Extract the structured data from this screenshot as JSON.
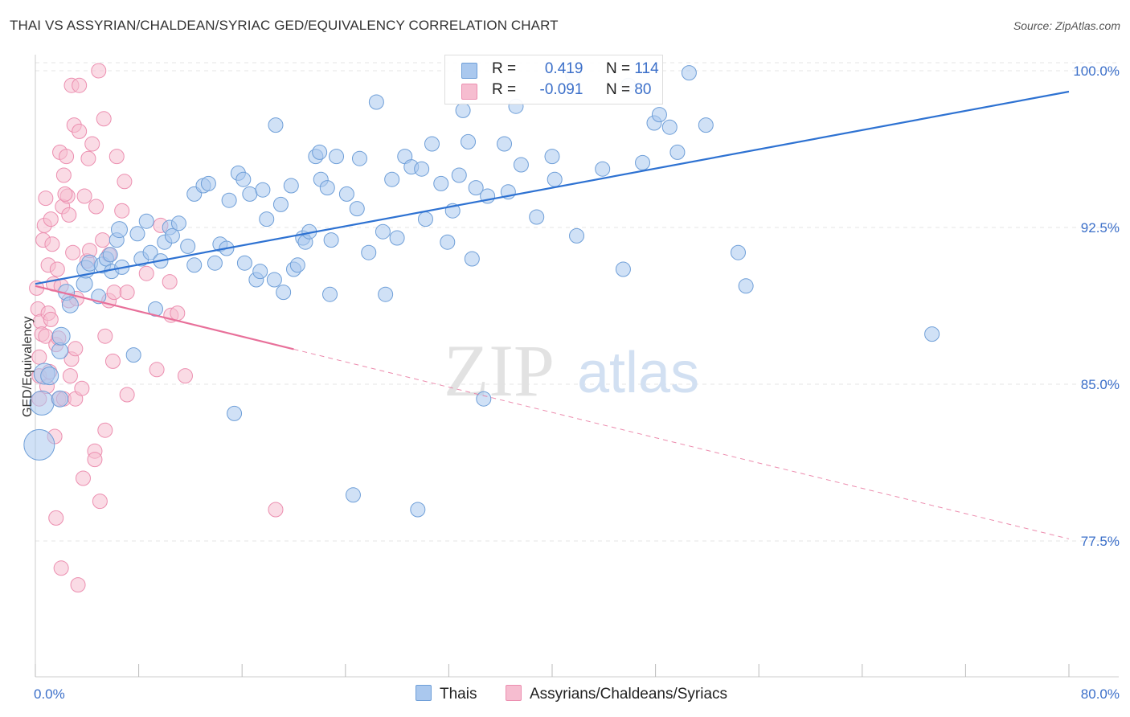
{
  "header": {
    "title": "THAI VS ASSYRIAN/CHALDEAN/SYRIAC GED/EQUIVALENCY CORRELATION CHART",
    "source": "Source: ZipAtlas.com"
  },
  "legend": {
    "thais": {
      "r_label": "R =",
      "r_value": "0.419",
      "n_label": "N =",
      "n_value": "114"
    },
    "assyrians": {
      "r_label": "R =",
      "r_value": "-0.091",
      "n_label": "N =",
      "n_value": "80"
    }
  },
  "bottom_legend": {
    "thais": "Thais",
    "assyrians": "Assyrians/Chaldeans/Syriacs"
  },
  "watermark": {
    "zip": "ZIP",
    "atlas": "atlas"
  },
  "colors": {
    "thais_fill": "#aac8ee",
    "thais_stroke": "#6f9fd8",
    "thais_line": "#2e72d2",
    "assy_fill": "#f6bdd0",
    "assy_stroke": "#ec8fb0",
    "assy_line": "#e8709a",
    "tick_text": "#3b6fc9",
    "grid": "#e4e4e4"
  },
  "chart_data": {
    "type": "scatter",
    "title": "THAI VS ASSYRIAN/CHALDEAN/SYRIAC GED/EQUIVALENCY CORRELATION CHART",
    "xlabel": "",
    "ylabel": "GED/Equivalency",
    "xlim": [
      0,
      80
    ],
    "ylim": [
      71,
      101
    ],
    "x_tick_labels": [
      "0.0%",
      "80.0%"
    ],
    "y_ticks": [
      77.5,
      85.0,
      92.5,
      100.0
    ],
    "y_tick_labels": [
      "77.5%",
      "85.0%",
      "92.5%",
      "100.0%"
    ],
    "grid": true,
    "legend_position": "top-center",
    "series": [
      {
        "name": "Thais",
        "trend": {
          "x0": 0,
          "y0": 89.8,
          "x1": 80,
          "y1": 99.0,
          "dashed_from": null
        },
        "points": [
          [
            0.3,
            82.1,
            18
          ],
          [
            0.5,
            84.1,
            14
          ],
          [
            0.7,
            85.5,
            12
          ],
          [
            1.1,
            85.4,
            10
          ],
          [
            1.9,
            84.3,
            9
          ],
          [
            1.9,
            86.6,
            9
          ],
          [
            2.0,
            87.3,
            10
          ],
          [
            2.4,
            89.4,
            9
          ],
          [
            2.7,
            88.8,
            9
          ],
          [
            3.8,
            89.8,
            9
          ],
          [
            3.9,
            90.5,
            10
          ],
          [
            4.2,
            90.8,
            9
          ],
          [
            4.9,
            89.2,
            8
          ],
          [
            5.2,
            90.7,
            9
          ],
          [
            5.5,
            91.0,
            8
          ],
          [
            5.8,
            91.2,
            8
          ],
          [
            5.9,
            90.4,
            8
          ],
          [
            6.3,
            91.9,
            8
          ],
          [
            6.5,
            92.4,
            9
          ],
          [
            6.7,
            90.6,
            8
          ],
          [
            7.6,
            86.4,
            8
          ],
          [
            7.9,
            92.2,
            8
          ],
          [
            8.2,
            91.0,
            8
          ],
          [
            8.6,
            92.8,
            8
          ],
          [
            8.9,
            91.3,
            8
          ],
          [
            9.3,
            88.6,
            8
          ],
          [
            9.7,
            90.9,
            8
          ],
          [
            10.0,
            91.8,
            8
          ],
          [
            10.4,
            92.5,
            8
          ],
          [
            10.6,
            92.1,
            8
          ],
          [
            11.1,
            92.7,
            8
          ],
          [
            11.8,
            91.6,
            8
          ],
          [
            12.3,
            94.1,
            8
          ],
          [
            12.3,
            90.7,
            8
          ],
          [
            13.0,
            94.5,
            8
          ],
          [
            13.4,
            94.6,
            8
          ],
          [
            13.9,
            90.8,
            8
          ],
          [
            14.3,
            91.7,
            8
          ],
          [
            14.8,
            91.5,
            8
          ],
          [
            15.0,
            93.8,
            8
          ],
          [
            15.4,
            83.6,
            8
          ],
          [
            15.7,
            95.1,
            8
          ],
          [
            16.1,
            94.8,
            8
          ],
          [
            16.2,
            90.8,
            8
          ],
          [
            16.6,
            94.1,
            8
          ],
          [
            17.1,
            90.0,
            8
          ],
          [
            17.4,
            90.4,
            8
          ],
          [
            17.6,
            94.3,
            8
          ],
          [
            17.9,
            92.9,
            8
          ],
          [
            18.5,
            90.0,
            8
          ],
          [
            18.6,
            97.4,
            8
          ],
          [
            19.0,
            93.6,
            8
          ],
          [
            19.2,
            89.4,
            8
          ],
          [
            19.8,
            94.5,
            8
          ],
          [
            20.0,
            90.5,
            8
          ],
          [
            20.3,
            90.7,
            8
          ],
          [
            20.7,
            92.0,
            8
          ],
          [
            20.9,
            91.8,
            8
          ],
          [
            21.2,
            92.3,
            8
          ],
          [
            21.7,
            95.9,
            8
          ],
          [
            22.0,
            96.1,
            8
          ],
          [
            22.1,
            94.8,
            8
          ],
          [
            22.6,
            94.4,
            8
          ],
          [
            22.8,
            89.3,
            8
          ],
          [
            22.9,
            91.9,
            8
          ],
          [
            23.3,
            95.9,
            8
          ],
          [
            24.1,
            94.1,
            8
          ],
          [
            24.6,
            79.7,
            8
          ],
          [
            24.9,
            93.4,
            8
          ],
          [
            25.1,
            95.8,
            8
          ],
          [
            25.8,
            91.3,
            8
          ],
          [
            26.4,
            98.5,
            8
          ],
          [
            26.9,
            92.3,
            8
          ],
          [
            27.1,
            89.3,
            8
          ],
          [
            27.6,
            94.8,
            8
          ],
          [
            28.0,
            92.0,
            8
          ],
          [
            28.6,
            95.9,
            8
          ],
          [
            29.1,
            95.4,
            8
          ],
          [
            29.6,
            79.0,
            8
          ],
          [
            29.9,
            95.3,
            8
          ],
          [
            30.2,
            92.9,
            8
          ],
          [
            30.7,
            96.5,
            8
          ],
          [
            31.4,
            94.6,
            8
          ],
          [
            31.9,
            91.8,
            8
          ],
          [
            32.3,
            93.3,
            8
          ],
          [
            32.8,
            95.0,
            8
          ],
          [
            33.1,
            98.1,
            8
          ],
          [
            33.5,
            96.6,
            8
          ],
          [
            33.8,
            91.0,
            8
          ],
          [
            34.1,
            94.4,
            8
          ],
          [
            34.7,
            84.3,
            8
          ],
          [
            35.0,
            94.0,
            8
          ],
          [
            36.3,
            96.5,
            8
          ],
          [
            36.6,
            94.2,
            8
          ],
          [
            37.2,
            98.3,
            8
          ],
          [
            37.6,
            95.5,
            8
          ],
          [
            38.8,
            93.0,
            8
          ],
          [
            40.0,
            95.9,
            8
          ],
          [
            40.2,
            94.8,
            8
          ],
          [
            41.6,
            99.8,
            8
          ],
          [
            41.9,
            92.1,
            8
          ],
          [
            43.9,
            95.3,
            8
          ],
          [
            45.5,
            90.5,
            8
          ],
          [
            47.0,
            95.6,
            8
          ],
          [
            47.9,
            97.5,
            8
          ],
          [
            48.3,
            97.9,
            8
          ],
          [
            49.1,
            97.3,
            8
          ],
          [
            49.7,
            96.1,
            8
          ],
          [
            50.6,
            99.9,
            8
          ],
          [
            51.9,
            97.4,
            8
          ],
          [
            54.4,
            91.3,
            8
          ],
          [
            55.0,
            89.7,
            8
          ],
          [
            69.4,
            87.4,
            8
          ],
          [
            45.9,
            99.3,
            8
          ]
        ]
      },
      {
        "name": "Assyrians/Chaldeans/Syriacs",
        "trend": {
          "x0": 0,
          "y0": 89.7,
          "x1": 80,
          "y1": 77.6,
          "solid_until": 20
        },
        "points": [
          [
            0.1,
            89.6,
            8
          ],
          [
            0.2,
            88.6,
            8
          ],
          [
            0.3,
            85.4,
            8
          ],
          [
            0.3,
            86.3,
            8
          ],
          [
            0.3,
            84.3,
            8
          ],
          [
            0.4,
            88.0,
            8
          ],
          [
            0.5,
            87.4,
            8
          ],
          [
            0.6,
            91.9,
            8
          ],
          [
            0.7,
            92.6,
            8
          ],
          [
            0.8,
            93.9,
            8
          ],
          [
            0.8,
            87.3,
            8
          ],
          [
            0.9,
            84.9,
            8
          ],
          [
            1.0,
            88.4,
            8
          ],
          [
            1.0,
            90.7,
            8
          ],
          [
            1.2,
            92.9,
            8
          ],
          [
            1.2,
            88.1,
            8
          ],
          [
            1.3,
            91.7,
            8
          ],
          [
            1.4,
            89.8,
            8
          ],
          [
            1.5,
            82.5,
            8
          ],
          [
            1.6,
            86.9,
            8
          ],
          [
            1.6,
            78.6,
            8
          ],
          [
            1.7,
            90.5,
            8
          ],
          [
            1.8,
            87.2,
            8
          ],
          [
            1.8,
            84.3,
            8
          ],
          [
            1.9,
            96.1,
            8
          ],
          [
            2.0,
            89.7,
            8
          ],
          [
            2.0,
            76.2,
            8
          ],
          [
            2.1,
            93.5,
            8
          ],
          [
            2.2,
            95.0,
            8
          ],
          [
            2.2,
            84.3,
            8
          ],
          [
            2.4,
            95.9,
            8
          ],
          [
            2.5,
            94.0,
            8
          ],
          [
            2.6,
            93.1,
            8
          ],
          [
            2.6,
            89.0,
            8
          ],
          [
            2.7,
            85.4,
            8
          ],
          [
            2.8,
            99.3,
            8
          ],
          [
            2.8,
            86.2,
            8
          ],
          [
            2.9,
            91.3,
            8
          ],
          [
            3.0,
            97.4,
            8
          ],
          [
            3.1,
            86.7,
            8
          ],
          [
            3.1,
            84.3,
            8
          ],
          [
            3.2,
            89.1,
            8
          ],
          [
            3.3,
            75.4,
            8
          ],
          [
            3.4,
            99.3,
            8
          ],
          [
            3.4,
            97.1,
            8
          ],
          [
            3.6,
            84.8,
            8
          ],
          [
            3.7,
            80.5,
            8
          ],
          [
            3.8,
            94.0,
            8
          ],
          [
            4.0,
            90.9,
            8
          ],
          [
            4.1,
            95.8,
            8
          ],
          [
            4.2,
            91.4,
            8
          ],
          [
            4.4,
            96.5,
            8
          ],
          [
            4.6,
            81.8,
            8
          ],
          [
            4.6,
            81.4,
            8
          ],
          [
            4.7,
            93.5,
            8
          ],
          [
            4.9,
            100.0,
            8
          ],
          [
            5.0,
            79.4,
            8
          ],
          [
            5.2,
            91.9,
            8
          ],
          [
            5.3,
            97.7,
            8
          ],
          [
            5.4,
            87.3,
            8
          ],
          [
            5.4,
            82.8,
            8
          ],
          [
            5.7,
            91.2,
            8
          ],
          [
            5.7,
            89.0,
            8
          ],
          [
            6.0,
            86.1,
            8
          ],
          [
            6.1,
            89.4,
            8
          ],
          [
            6.3,
            95.9,
            8
          ],
          [
            6.7,
            93.3,
            8
          ],
          [
            6.9,
            94.7,
            8
          ],
          [
            7.1,
            89.4,
            8
          ],
          [
            7.1,
            84.5,
            8
          ],
          [
            8.6,
            90.3,
            8
          ],
          [
            9.4,
            85.7,
            8
          ],
          [
            9.7,
            92.6,
            8
          ],
          [
            10.4,
            89.9,
            8
          ],
          [
            10.5,
            88.3,
            8
          ],
          [
            11.0,
            88.4,
            8
          ],
          [
            11.6,
            85.4,
            8
          ],
          [
            18.6,
            79.0,
            8
          ],
          [
            2.3,
            94.1,
            8
          ],
          [
            1.1,
            85.6,
            8
          ]
        ]
      }
    ]
  }
}
